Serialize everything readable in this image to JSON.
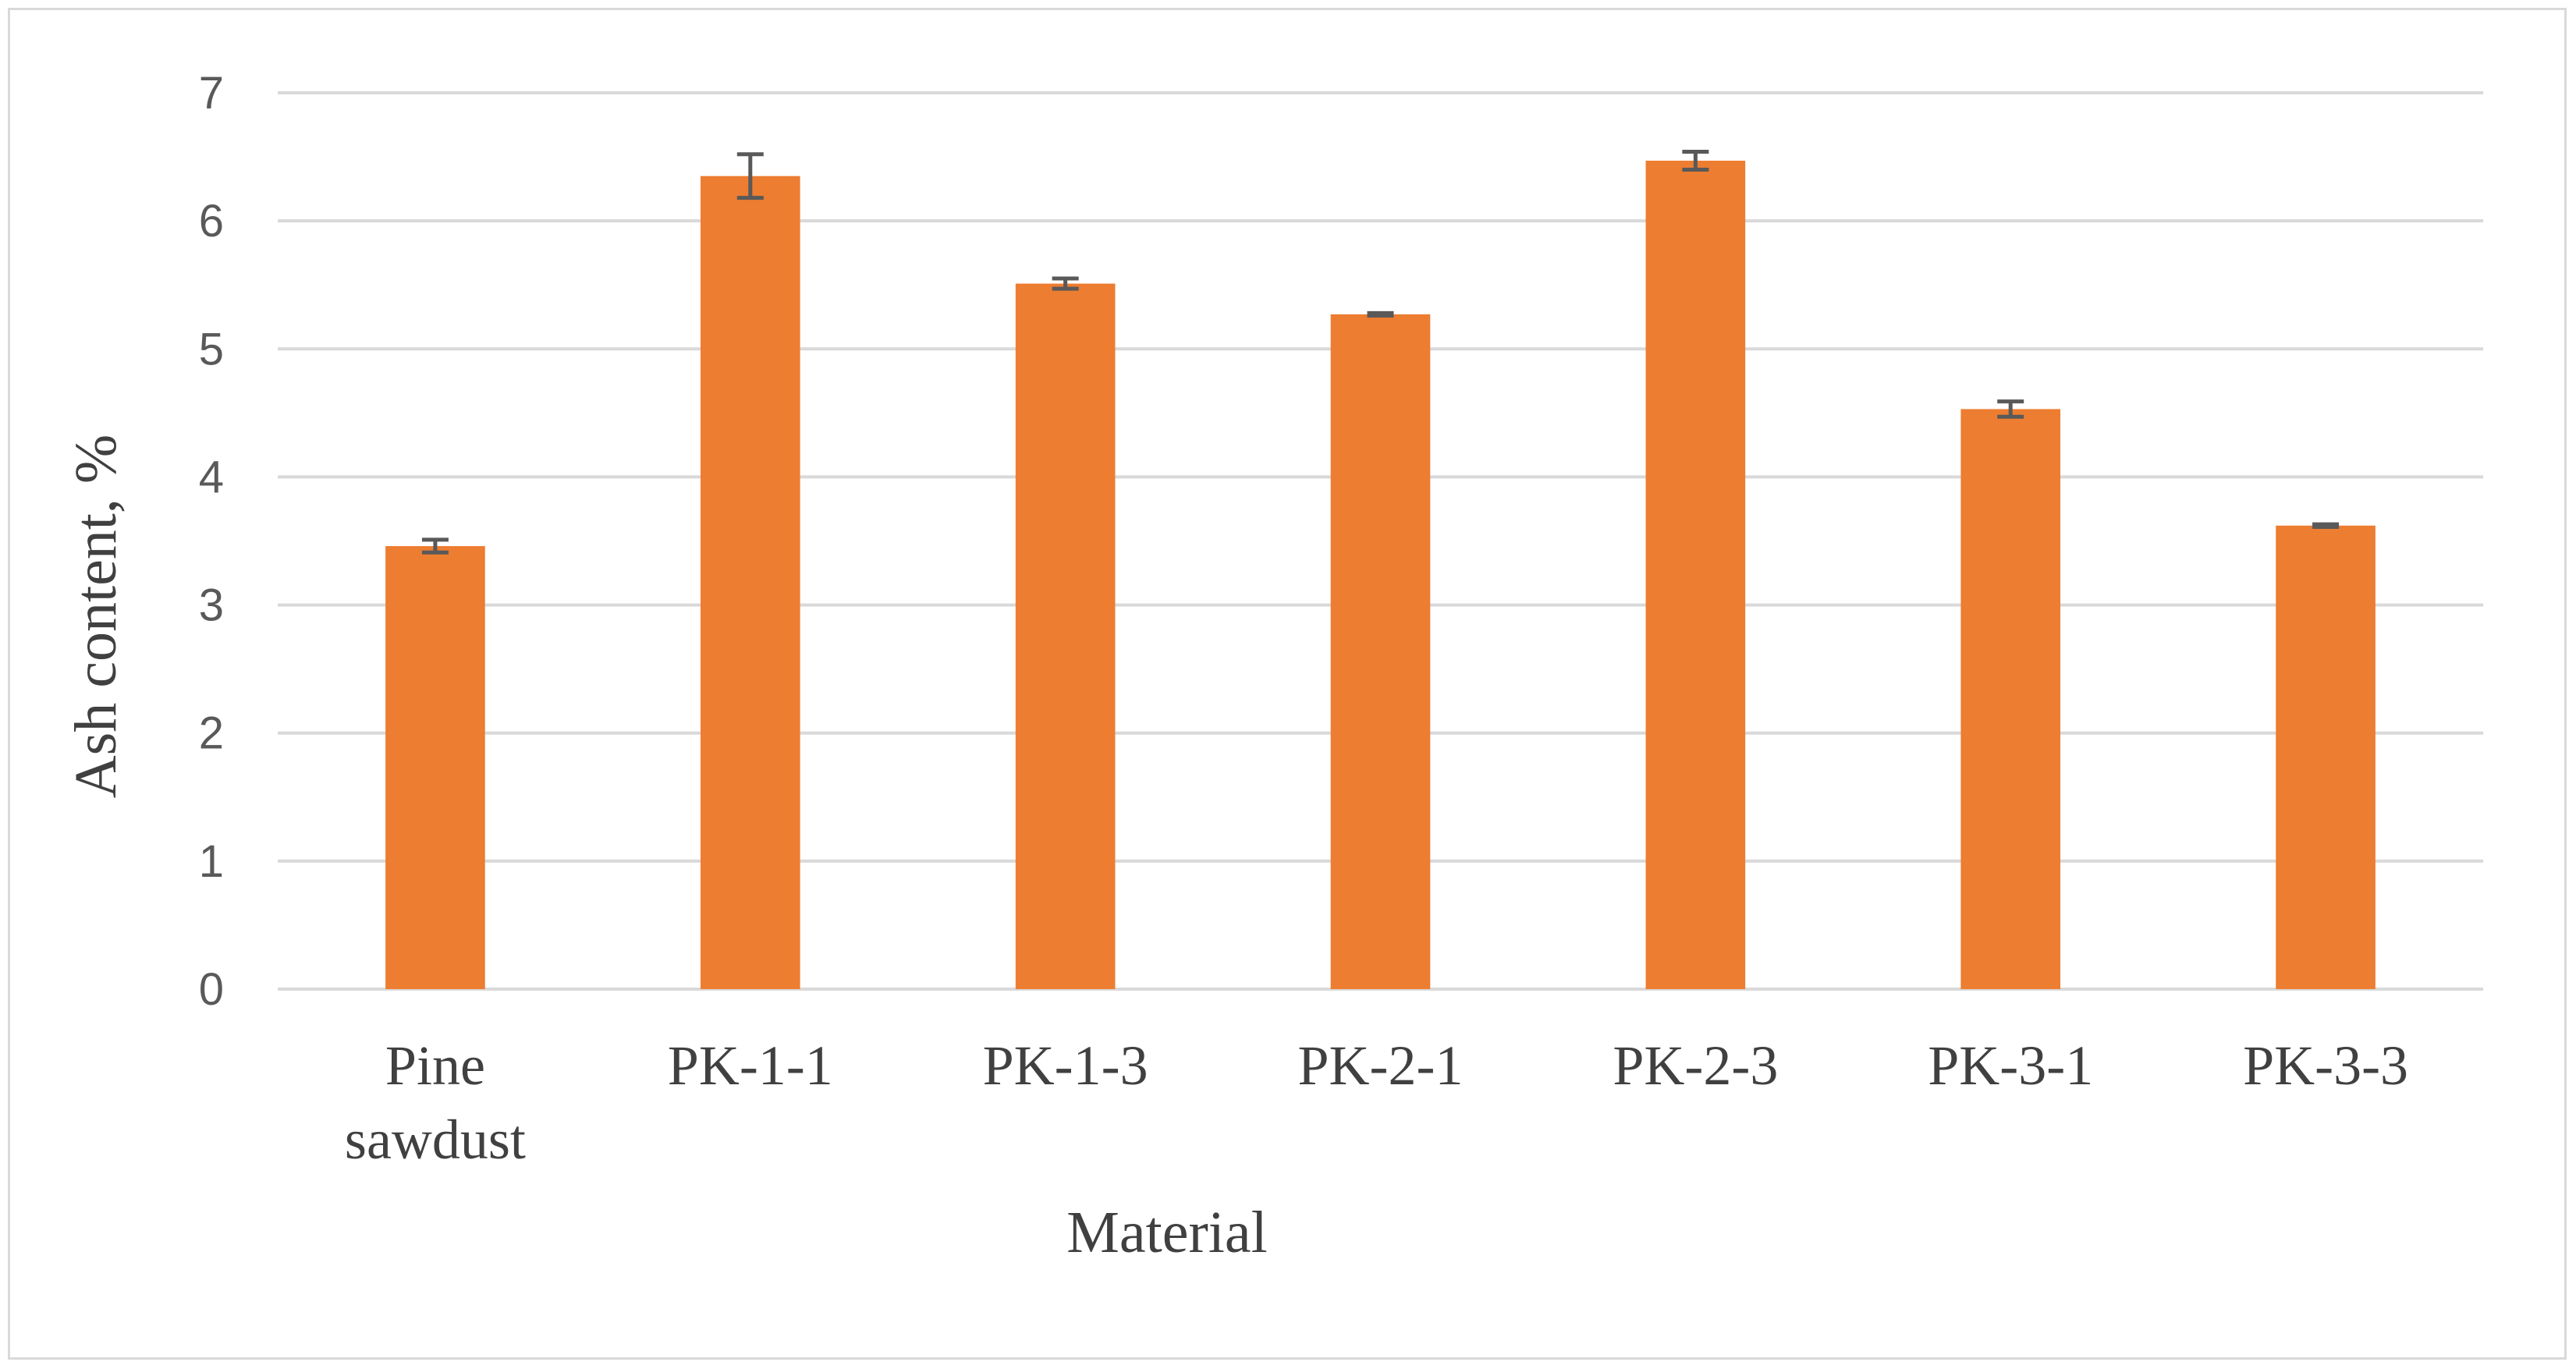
{
  "chart_data": {
    "type": "bar",
    "categories": [
      [
        "Pine",
        "sawdust"
      ],
      [
        "PK-1-1"
      ],
      [
        "PK-1-3"
      ],
      [
        "PK-2-1"
      ],
      [
        "PK-2-3"
      ],
      [
        "PK-3-1"
      ],
      [
        "PK-3-3"
      ]
    ],
    "values": [
      3.46,
      6.35,
      5.51,
      5.27,
      6.47,
      4.53,
      3.62
    ],
    "error": [
      0.05,
      0.17,
      0.04,
      0.01,
      0.07,
      0.06,
      0.01
    ],
    "xlabel": "Material",
    "ylabel": "Ash content, %",
    "ylim": [
      0,
      7
    ],
    "yticks": [
      0,
      1,
      2,
      3,
      4,
      5,
      6,
      7
    ],
    "grid": true,
    "bar_color": "#ed7d31",
    "error_color": "#595959",
    "grid_color": "#d9d9d9"
  }
}
